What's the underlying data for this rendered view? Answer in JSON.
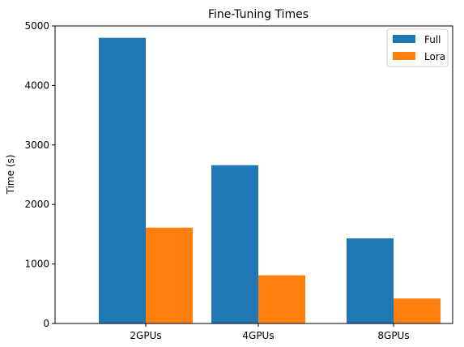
{
  "chart_data": {
    "type": "bar",
    "title": "Fine-Tuning Times",
    "xlabel": "",
    "ylabel": "Time (s)",
    "categories": [
      "2GPUs",
      "4GPUs",
      "8GPUs"
    ],
    "series": [
      {
        "name": "Full",
        "values": [
          4800,
          2660,
          1430
        ],
        "color": "#1f77b4"
      },
      {
        "name": "Lora",
        "values": [
          1610,
          810,
          420
        ],
        "color": "#ff7f0e"
      }
    ],
    "ylim": [
      0,
      5000
    ],
    "yticks": [
      0,
      1000,
      2000,
      3000,
      4000,
      5000
    ],
    "grid": false,
    "legend_position": "top-right"
  }
}
